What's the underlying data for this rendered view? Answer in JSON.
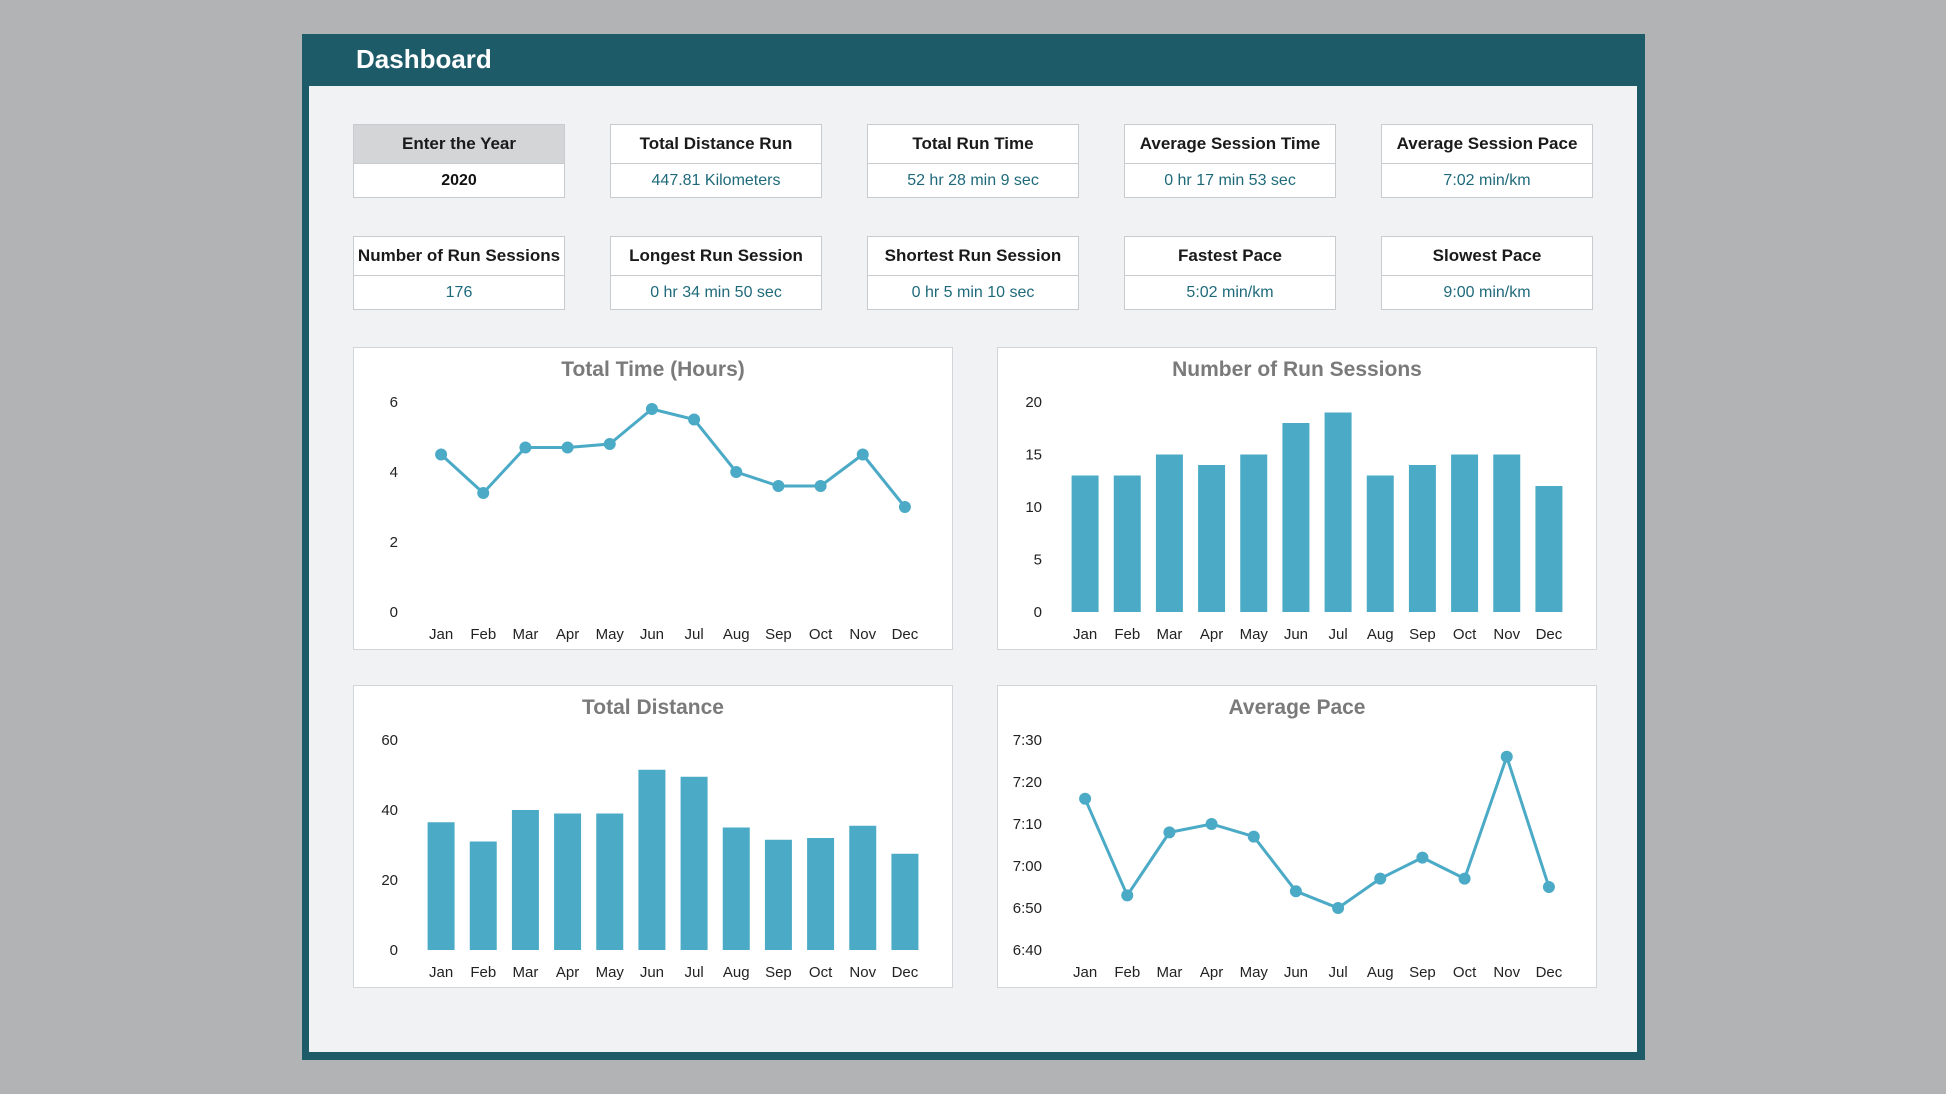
{
  "header": {
    "title": "Dashboard"
  },
  "colors": {
    "frame": "#1e5b68",
    "accent": "#4baac6",
    "value_text": "#1e6a7a"
  },
  "kpis": [
    {
      "label": "Enter the Year",
      "value": "2020"
    },
    {
      "label": "Total Distance Run",
      "value": "447.81 Kilometers"
    },
    {
      "label": "Total Run Time",
      "value": "52 hr  28 min  9 sec"
    },
    {
      "label": "Average Session Time",
      "value": "0 hr  17 min  53 sec"
    },
    {
      "label": "Average Session Pace",
      "value": "7:02 min/km"
    },
    {
      "label": "Number of Run Sessions",
      "value": "176"
    },
    {
      "label": "Longest Run Session",
      "value": "0 hr  34 min  50 sec"
    },
    {
      "label": "Shortest Run Session",
      "value": "0 hr  5 min  10 sec"
    },
    {
      "label": "Fastest Pace",
      "value": "5:02 min/km"
    },
    {
      "label": "Slowest Pace",
      "value": "9:00 min/km"
    }
  ],
  "chart_data": [
    {
      "type": "line",
      "title": "Total Time (Hours)",
      "categories": [
        "Jan",
        "Feb",
        "Mar",
        "Apr",
        "May",
        "Jun",
        "Jul",
        "Aug",
        "Sep",
        "Oct",
        "Nov",
        "Dec"
      ],
      "values": [
        4.5,
        3.4,
        4.7,
        4.7,
        4.8,
        5.8,
        5.5,
        4.0,
        3.6,
        3.6,
        4.5,
        3.0
      ],
      "ylim": [
        0,
        6
      ],
      "yticks": [
        0,
        2,
        4,
        6
      ],
      "ytick_labels": [
        "0",
        "2",
        "4",
        "6"
      ]
    },
    {
      "type": "bar",
      "title": "Number of Run Sessions",
      "categories": [
        "Jan",
        "Feb",
        "Mar",
        "Apr",
        "May",
        "Jun",
        "Jul",
        "Aug",
        "Sep",
        "Oct",
        "Nov",
        "Dec"
      ],
      "values": [
        13,
        13,
        15,
        14,
        15,
        18,
        19,
        13,
        14,
        15,
        15,
        12
      ],
      "ylim": [
        0,
        20
      ],
      "yticks": [
        0,
        5,
        10,
        15,
        20
      ],
      "ytick_labels": [
        "0",
        "5",
        "10",
        "15",
        "20"
      ]
    },
    {
      "type": "bar",
      "title": "Total Distance",
      "categories": [
        "Jan",
        "Feb",
        "Mar",
        "Apr",
        "May",
        "Jun",
        "Jul",
        "Aug",
        "Sep",
        "Oct",
        "Nov",
        "Dec"
      ],
      "values": [
        36.5,
        31,
        40,
        39,
        39,
        51.5,
        49.5,
        35,
        31.5,
        32,
        35.5,
        27.5
      ],
      "ylim": [
        0,
        60
      ],
      "yticks": [
        0,
        20,
        40,
        60
      ],
      "ytick_labels": [
        "0",
        "20",
        "40",
        "60"
      ]
    },
    {
      "type": "line",
      "title": "Average Pace",
      "categories": [
        "Jan",
        "Feb",
        "Mar",
        "Apr",
        "May",
        "Jun",
        "Jul",
        "Aug",
        "Sep",
        "Oct",
        "Nov",
        "Dec"
      ],
      "values": [
        "7:16",
        "6:53",
        "7:08",
        "7:10",
        "7:07",
        "6:54",
        "6:50",
        "6:57",
        "7:02",
        "6:57",
        "7:26",
        "6:55"
      ],
      "ylim": [
        "6:40",
        "7:30"
      ],
      "yticks": [
        "6:40",
        "6:50",
        "7:00",
        "7:10",
        "7:20",
        "7:30"
      ],
      "ytick_labels": [
        "6:40",
        "6:50",
        "7:00",
        "7:10",
        "7:20",
        "7:30"
      ]
    }
  ]
}
